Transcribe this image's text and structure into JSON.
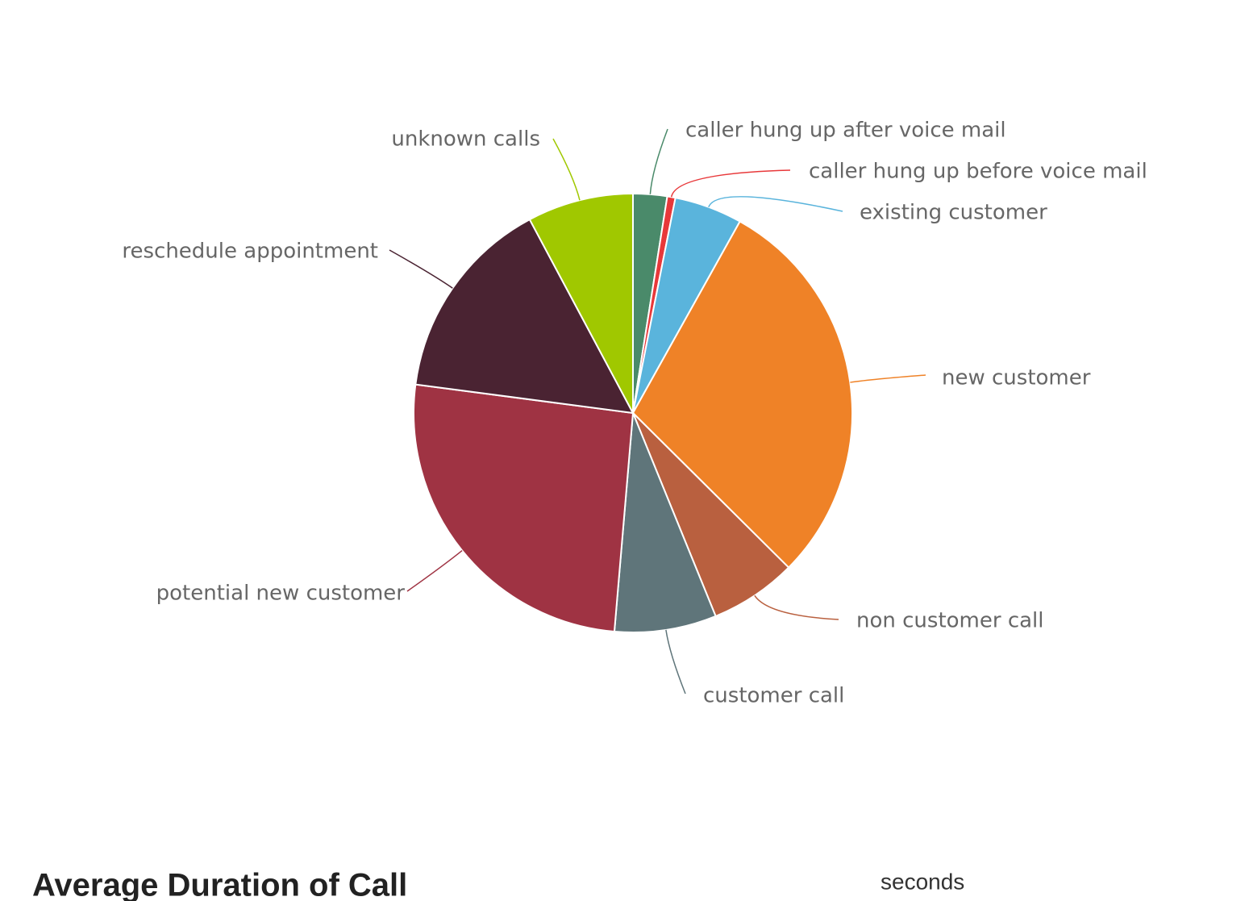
{
  "chart_data": {
    "type": "pie",
    "categories": [
      "caller hung up after voice mail",
      "caller hung up before voice mail",
      "existing customer",
      "new customer",
      "non customer call",
      "customer call",
      "potential new customer",
      "reschedule appointment",
      "unknown calls"
    ],
    "values": [
      2.5,
      0.6,
      5,
      29.3,
      6.4,
      7.5,
      25.7,
      15.1,
      7.8
    ],
    "colors": [
      "#4a8a6a",
      "#e8383a",
      "#5ab4dc",
      "#ef8227",
      "#b9603f",
      "#5f757a",
      "#9f3343",
      "#4a2332",
      "#a0c800"
    ]
  },
  "heading": "Average Duration of Call",
  "unit_label": "seconds"
}
